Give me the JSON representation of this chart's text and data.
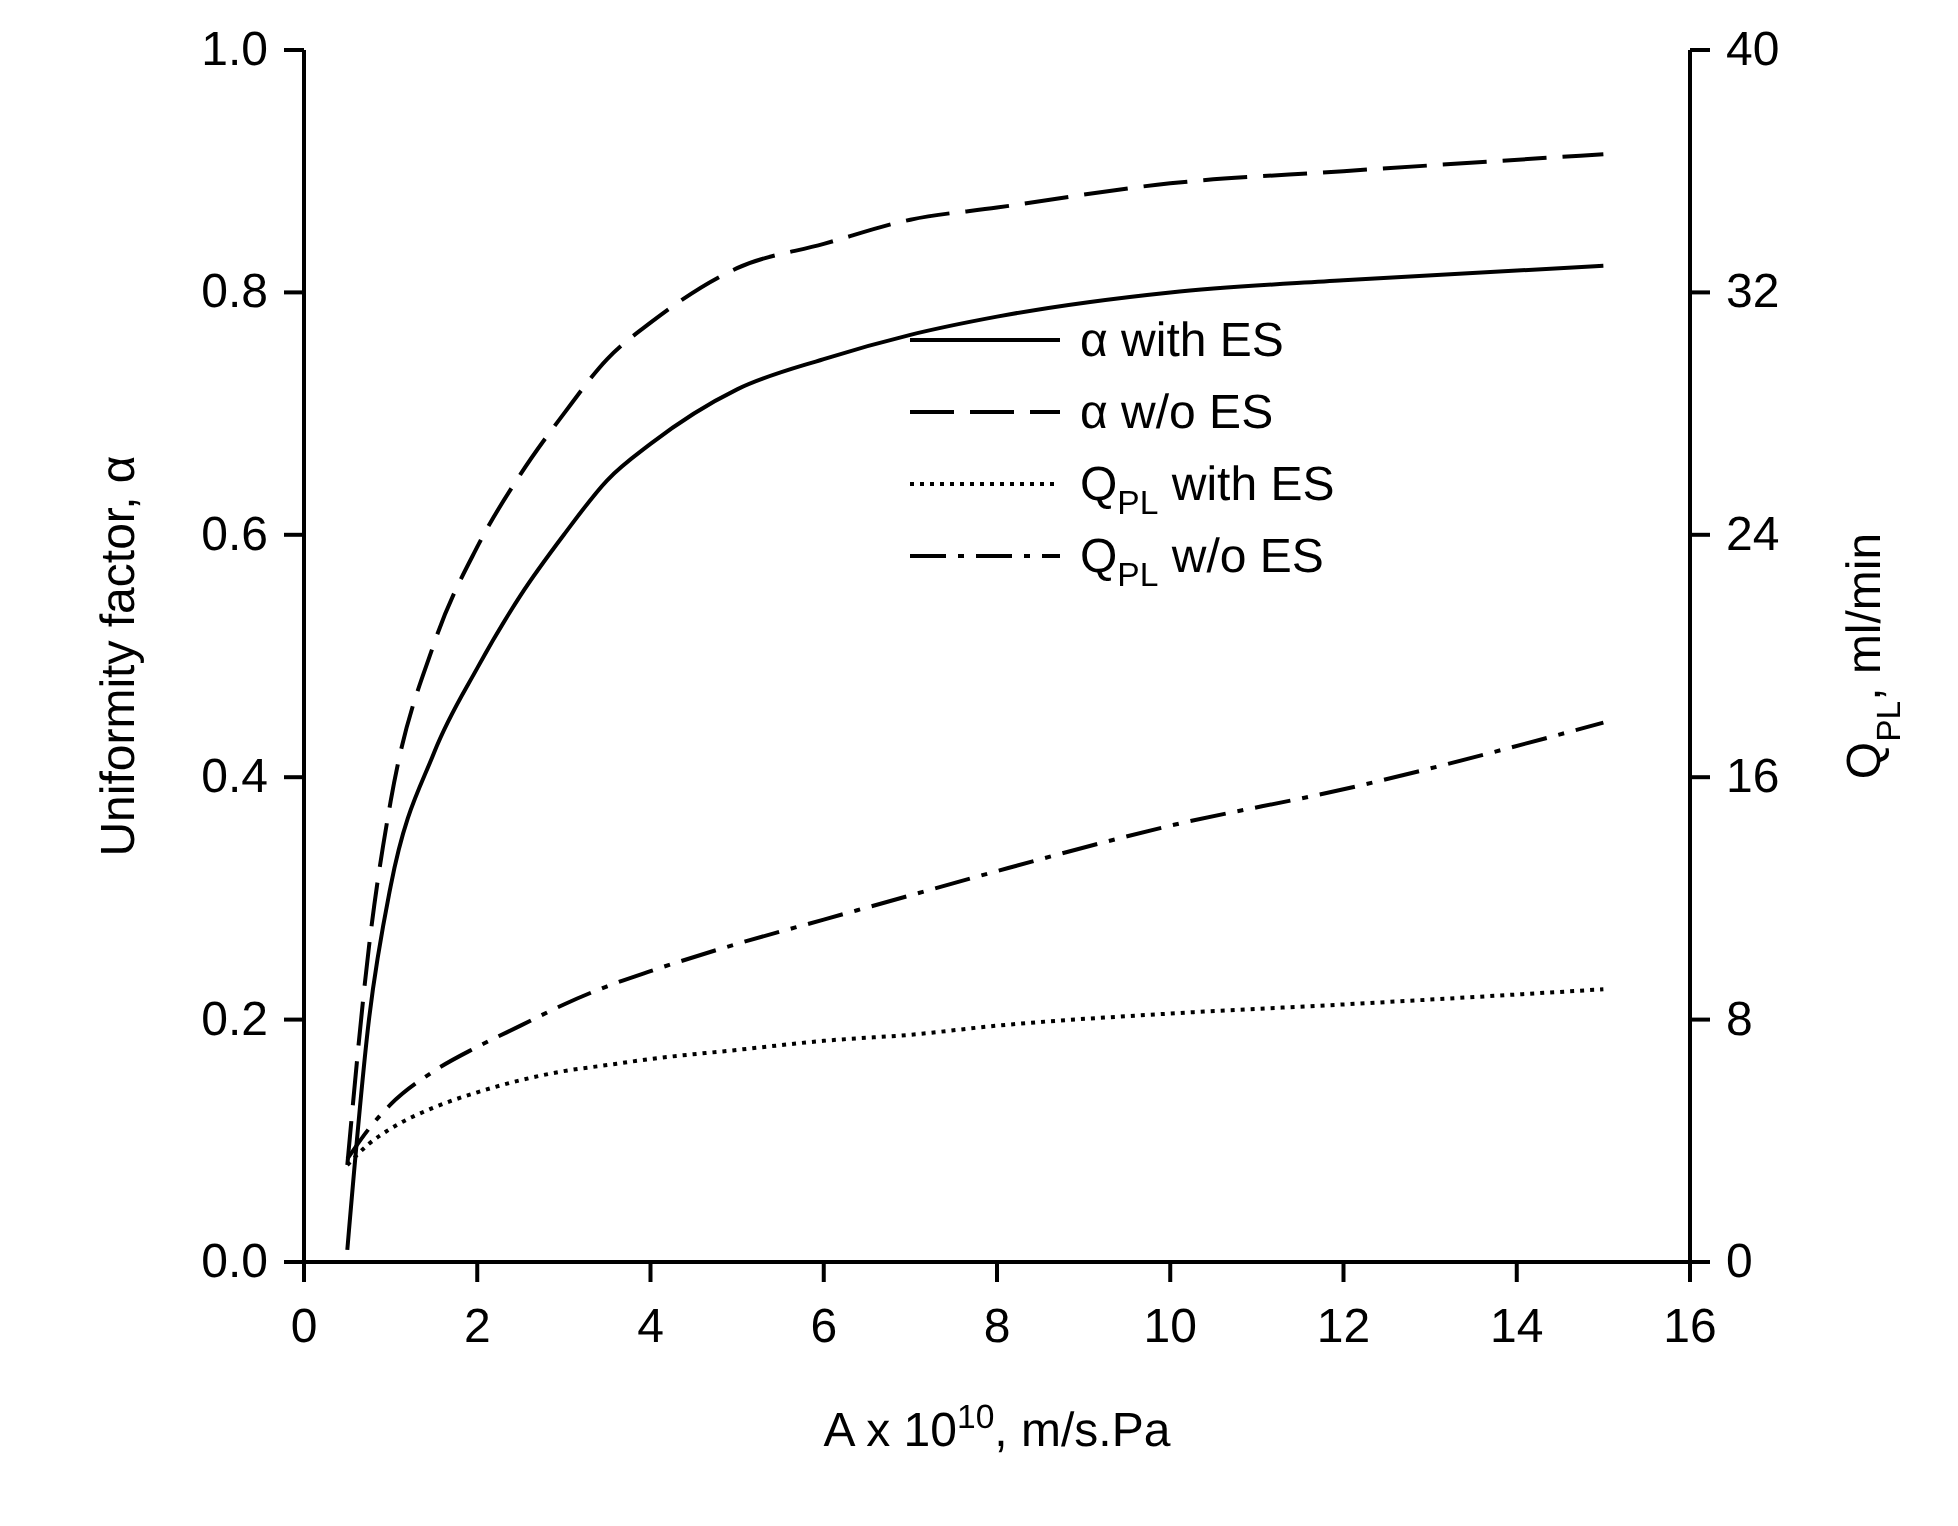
{
  "chart_data": {
    "type": "line",
    "xlabel": "A x 10$^{10}$, m/s.Pa",
    "ylabel": "Uniformity factor, α",
    "y2label": "Q$_{PL}$, ml/min",
    "xlim": [
      0,
      16
    ],
    "xticks": [
      0,
      2,
      4,
      6,
      8,
      10,
      12,
      14,
      16
    ],
    "ylim": [
      0,
      1
    ],
    "yticks": [
      {
        "value": 0,
        "label": "0.0"
      },
      0.2,
      0.4,
      0.6,
      0.8,
      {
        "value": 1,
        "label": "1.0"
      }
    ],
    "y2lim": [
      0,
      40
    ],
    "y2ticks": [
      0,
      8,
      16,
      24,
      32,
      40
    ],
    "x": [
      0.5,
      0.75,
      1,
      1.5,
      2,
      2.5,
      3,
      3.5,
      4,
      5,
      6,
      7,
      8,
      10,
      12,
      15
    ],
    "legend": "top right",
    "grid": false,
    "series": [
      {
        "name": "α with ES",
        "color": "#000000",
        "line_style": "solid",
        "values": [
          0.01,
          0.2,
          0.31,
          0.42,
          0.49,
          0.55,
          0.6,
          0.645,
          0.675,
          0.72,
          0.745,
          0.765,
          0.78,
          0.8,
          0.81,
          0.822
        ]
      },
      {
        "name": "α w/o ES",
        "color": "#000000",
        "line_style": "dashed",
        "values": [
          0.08,
          0.26,
          0.38,
          0.51,
          0.59,
          0.65,
          0.7,
          0.745,
          0.775,
          0.82,
          0.84,
          0.86,
          0.87,
          0.89,
          0.9,
          0.914
        ]
      },
      {
        "name": "Q$_{PL}$ with ES",
        "color": "#000000",
        "line_style": "dotted",
        "axis": "y2",
        "values": [
          3.2,
          3.9,
          4.4,
          5.1,
          5.6,
          6.0,
          6.3,
          6.5,
          6.7,
          7.0,
          7.3,
          7.5,
          7.8,
          8.2,
          8.5,
          9.0
        ]
      },
      {
        "name": "Q$_{PL}$ w/o ES",
        "color": "#000000",
        "line_style": "dashdot",
        "axis": "y2",
        "values": [
          3.4,
          4.4,
          5.2,
          6.3,
          7.1,
          7.8,
          8.5,
          9.1,
          9.6,
          10.5,
          11.3,
          12.1,
          12.9,
          14.4,
          15.6,
          17.8
        ]
      }
    ]
  }
}
